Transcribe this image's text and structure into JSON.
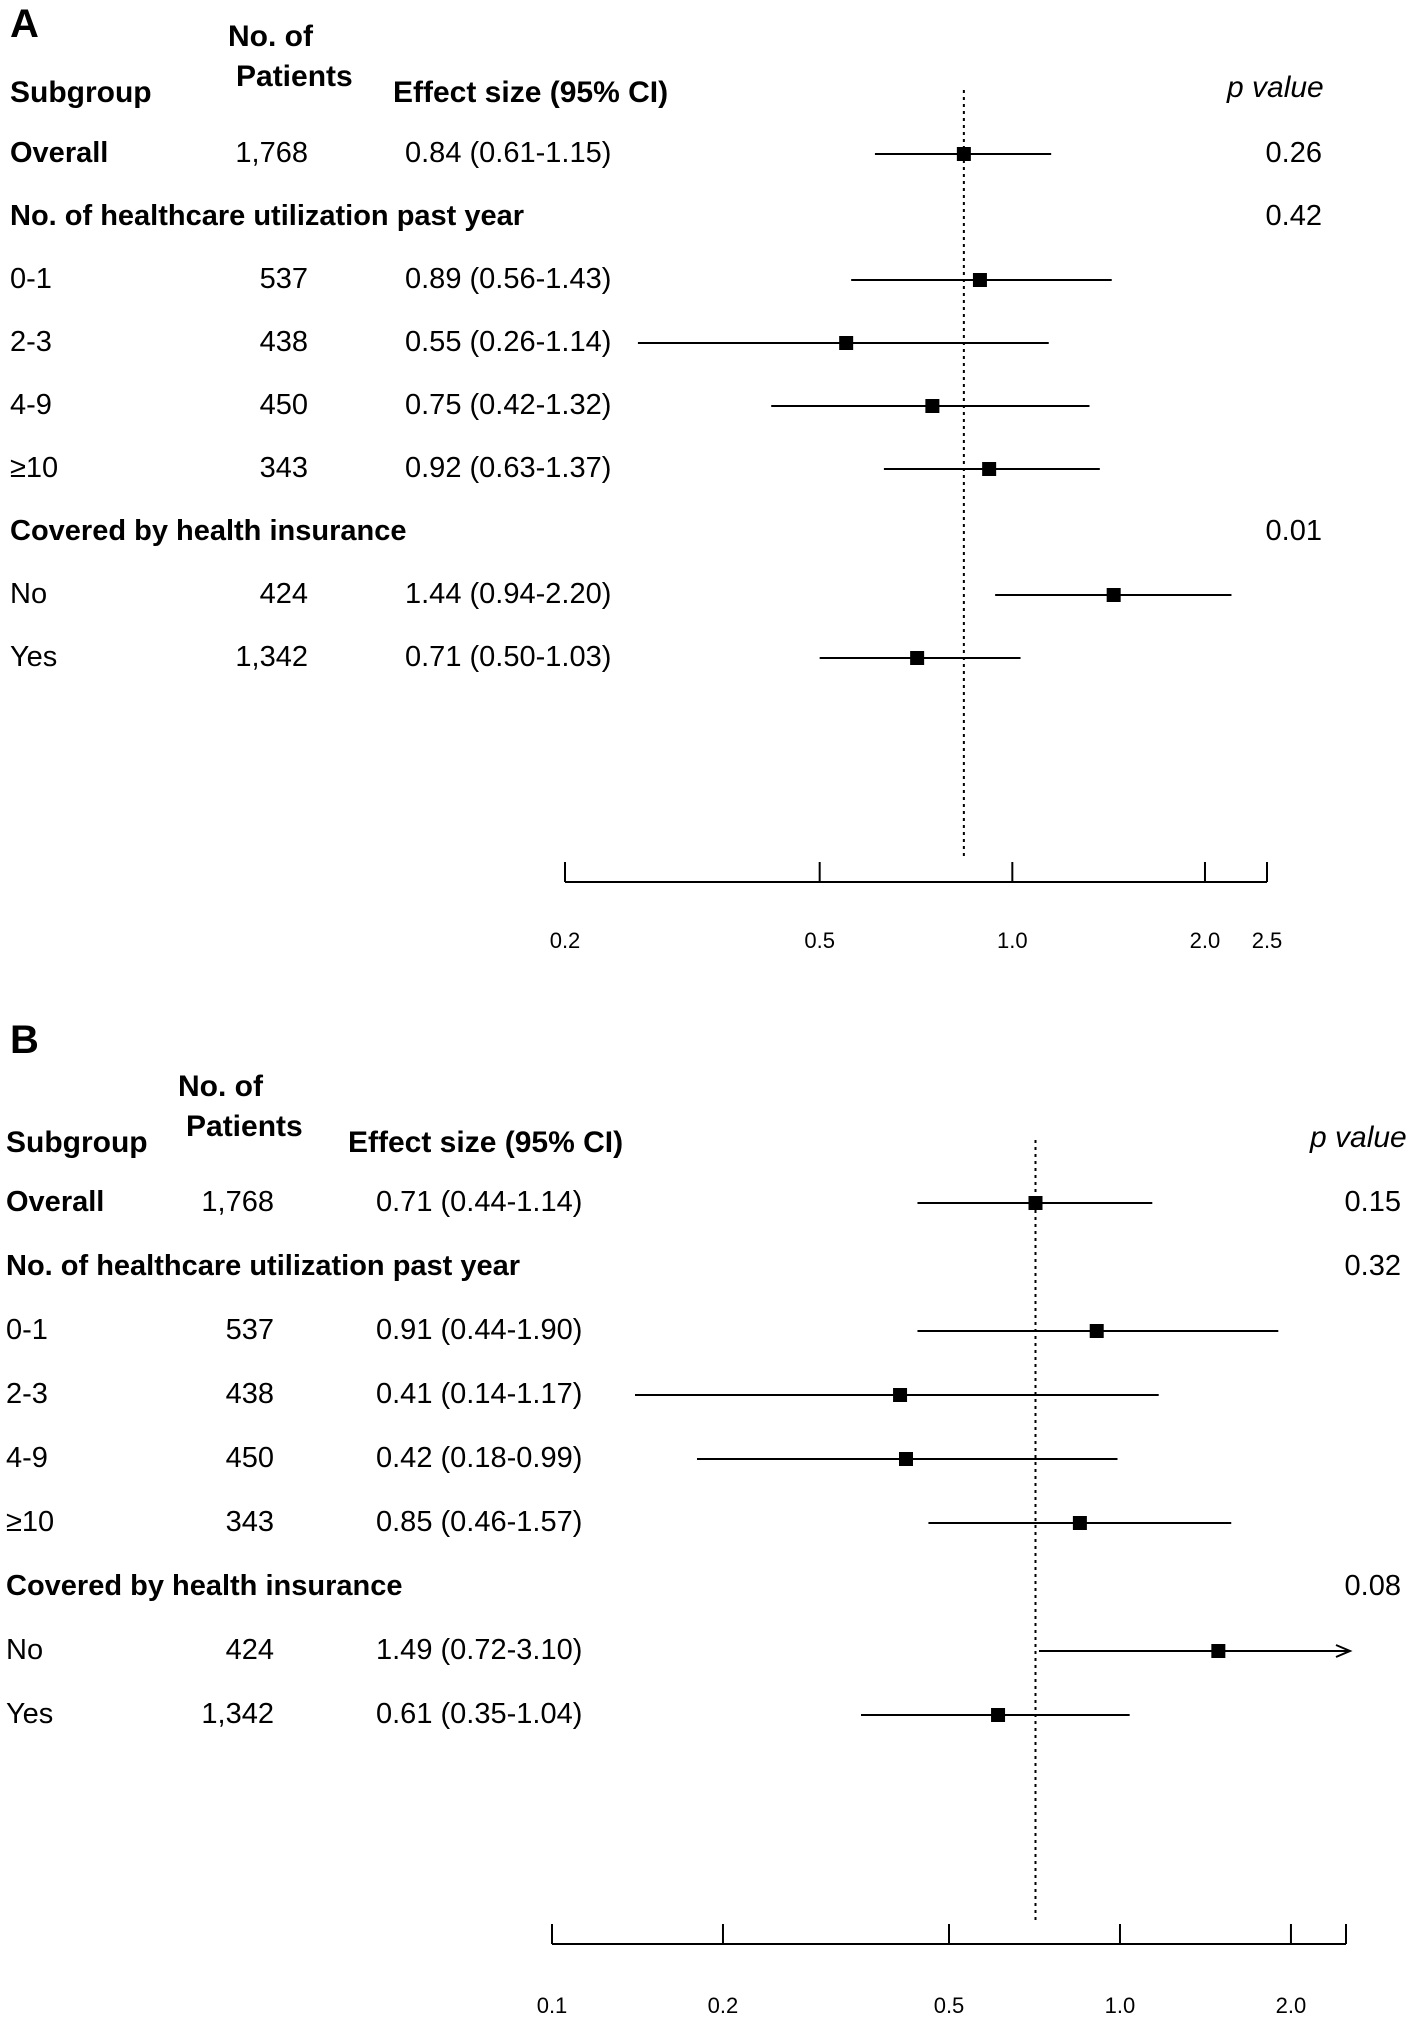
{
  "chart_data": [
    {
      "type": "forest",
      "panel": "A",
      "headers": {
        "subgroup": "Subgroup",
        "patients_line1": "No. of",
        "patients_line2": "Patients",
        "effect": "Effect size (95% CI)",
        "pvalue": "p value"
      },
      "rows": [
        {
          "label": "Overall",
          "bold": true,
          "n": "1,768",
          "effect_text": "0.84 (0.61-1.15)",
          "est": 0.84,
          "lo": 0.61,
          "hi": 1.15,
          "p": "0.26"
        },
        {
          "label": "No. of healthcare utilization past year",
          "bold": true,
          "header": true,
          "p": "0.42"
        },
        {
          "label": "0-1",
          "n": "537",
          "effect_text": "0.89 (0.56-1.43)",
          "est": 0.89,
          "lo": 0.56,
          "hi": 1.43
        },
        {
          "label": "2-3",
          "n": "438",
          "effect_text": "0.55 (0.26-1.14)",
          "est": 0.55,
          "lo": 0.26,
          "hi": 1.14
        },
        {
          "label": "4-9",
          "n": "450",
          "effect_text": "0.75 (0.42-1.32)",
          "est": 0.75,
          "lo": 0.42,
          "hi": 1.32
        },
        {
          "label": "≥10",
          "n": "343",
          "effect_text": "0.92 (0.63-1.37)",
          "est": 0.92,
          "lo": 0.63,
          "hi": 1.37
        },
        {
          "label": "Covered by health insurance",
          "bold": true,
          "header": true,
          "p": "0.01"
        },
        {
          "label": "No",
          "n": "424",
          "effect_text": "1.44 (0.94-2.20)",
          "est": 1.44,
          "lo": 0.94,
          "hi": 2.2
        },
        {
          "label": "Yes",
          "n": "1,342",
          "effect_text": "0.71 (0.50-1.03)",
          "est": 0.71,
          "lo": 0.5,
          "hi": 1.03
        }
      ],
      "reference_line": 0.84,
      "x_scale": "log",
      "xlim": [
        0.2,
        2.5
      ],
      "ticks": [
        0.2,
        0.5,
        1.0,
        2.0,
        2.5
      ],
      "tick_labels": [
        "0.2",
        "0.5",
        "1.0",
        "2.0",
        "2.5"
      ]
    },
    {
      "type": "forest",
      "panel": "B",
      "headers": {
        "subgroup": "Subgroup",
        "patients_line1": "No. of",
        "patients_line2": "Patients",
        "effect": "Effect size (95% CI)",
        "pvalue": "p value"
      },
      "rows": [
        {
          "label": "Overall",
          "bold": true,
          "n": "1,768",
          "effect_text": "0.71 (0.44-1.14)",
          "est": 0.71,
          "lo": 0.44,
          "hi": 1.14,
          "p": "0.15"
        },
        {
          "label": "No. of healthcare utilization past year",
          "bold": true,
          "header": true,
          "p": "0.32"
        },
        {
          "label": "0-1",
          "n": "537",
          "effect_text": "0.91 (0.44-1.90)",
          "est": 0.91,
          "lo": 0.44,
          "hi": 1.9
        },
        {
          "label": "2-3",
          "n": "438",
          "effect_text": "0.41 (0.14-1.17)",
          "est": 0.41,
          "lo": 0.14,
          "hi": 1.17
        },
        {
          "label": "4-9",
          "n": "450",
          "effect_text": "0.42 (0.18-0.99)",
          "est": 0.42,
          "lo": 0.18,
          "hi": 0.99
        },
        {
          "label": "≥10",
          "n": "343",
          "effect_text": "0.85 (0.46-1.57)",
          "est": 0.85,
          "lo": 0.46,
          "hi": 1.57
        },
        {
          "label": "Covered by health insurance",
          "bold": true,
          "header": true,
          "p": "0.08"
        },
        {
          "label": "No",
          "n": "424",
          "effect_text": "1.49 (0.72-3.10)",
          "est": 1.49,
          "lo": 0.72,
          "hi": 3.1,
          "clipped_high": true
        },
        {
          "label": "Yes",
          "n": "1,342",
          "effect_text": "0.61 (0.35-1.04)",
          "est": 0.61,
          "lo": 0.35,
          "hi": 1.04
        }
      ],
      "reference_line": 0.71,
      "x_scale": "log",
      "xlim": [
        0.1,
        2.5
      ],
      "ticks": [
        0.1,
        0.2,
        0.5,
        1.0,
        2.0,
        2.5
      ],
      "tick_labels": [
        "0.1",
        "0.2",
        "0.5",
        "1.0",
        "2.0",
        ""
      ]
    }
  ],
  "panel_labels": [
    "A",
    "B"
  ]
}
